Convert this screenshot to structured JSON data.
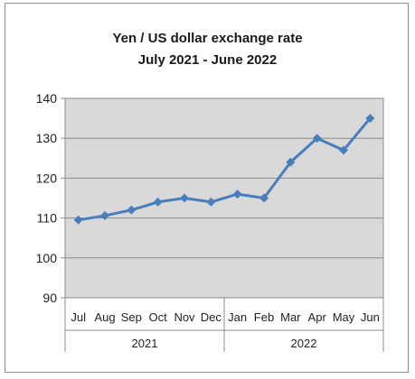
{
  "chart_data": {
    "type": "line",
    "title": "Yen / US dollar exchange rate",
    "subtitle": "July 2021 - June 2022",
    "categories": [
      "Jul",
      "Aug",
      "Sep",
      "Oct",
      "Nov",
      "Dec",
      "Jan",
      "Feb",
      "Mar",
      "Apr",
      "May",
      "Jun"
    ],
    "year_groups": [
      {
        "label": "2021",
        "months": [
          "Jul",
          "Aug",
          "Sep",
          "Oct",
          "Nov",
          "Dec"
        ]
      },
      {
        "label": "2022",
        "months": [
          "Jan",
          "Feb",
          "Mar",
          "Apr",
          "May",
          "Jun"
        ]
      }
    ],
    "series": [
      {
        "values": [
          109.5,
          110.6,
          112.0,
          114.0,
          115.0,
          114.0,
          116.0,
          115.0,
          124.0,
          130.0,
          127.0,
          135.0
        ]
      }
    ],
    "ylim": [
      90,
      140
    ],
    "yticks": [
      90,
      100,
      110,
      120,
      130,
      140
    ],
    "grid": true,
    "legend": "none",
    "colors": {
      "line": "#4a7ebb",
      "marker": "#4a7ebb",
      "plot_background": "#d9d9d9",
      "gridline": "#8c8c8c"
    }
  }
}
